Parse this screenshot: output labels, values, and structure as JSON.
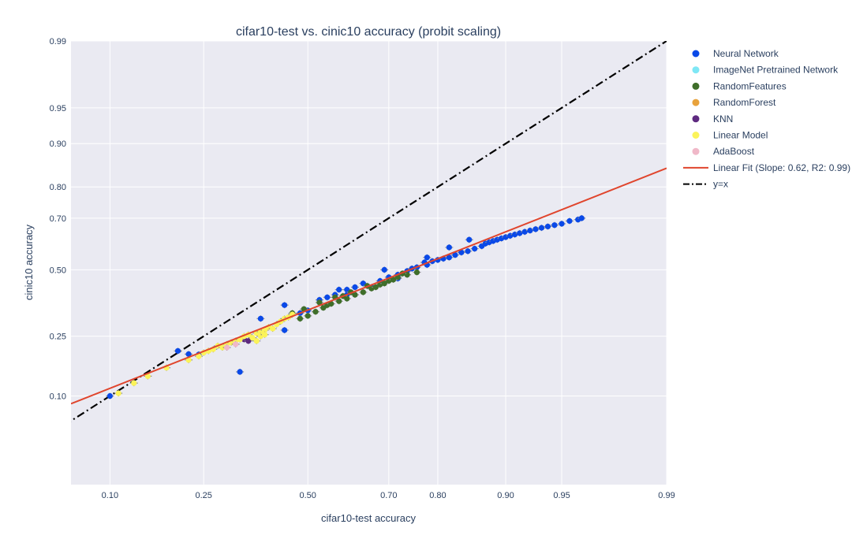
{
  "chart_data": {
    "type": "scatter",
    "title": "cifar10-test vs. cinic10 accuracy (probit scaling)",
    "xlabel": "cifar10-test accuracy",
    "ylabel": "cinic10 accuracy",
    "scale": "probit",
    "xlim": [
      0.0625,
      0.99
    ],
    "ylim": [
      0.0145,
      0.99
    ],
    "xticks": [
      0.1,
      0.25,
      0.5,
      0.7,
      0.8,
      0.9,
      0.95,
      0.99
    ],
    "xtick_labels": [
      "0.10",
      "0.25",
      "0.50",
      "0.70",
      "0.80",
      "0.90",
      "0.95",
      "0.99"
    ],
    "yticks": [
      0.1,
      0.25,
      0.5,
      0.7,
      0.8,
      0.9,
      0.95,
      0.99
    ],
    "ytick_labels": [
      "0.10",
      "0.25",
      "0.50",
      "0.70",
      "0.80",
      "0.90",
      "0.95",
      "0.99"
    ],
    "grid": true,
    "legend_position": "right",
    "error_bar_color": "#8c8c8c",
    "series": [
      {
        "name": "Neural Network",
        "color": "#0a49e8",
        "points": [
          [
            0.1,
            0.1
          ],
          [
            0.2,
            0.205
          ],
          [
            0.22,
            0.196
          ],
          [
            0.24,
            0.195
          ],
          [
            0.33,
            0.15
          ],
          [
            0.44,
            0.36
          ],
          [
            0.44,
            0.27
          ],
          [
            0.48,
            0.33
          ],
          [
            0.5,
            0.34
          ],
          [
            0.53,
            0.38
          ],
          [
            0.55,
            0.39
          ],
          [
            0.57,
            0.4
          ],
          [
            0.6,
            0.42
          ],
          [
            0.62,
            0.43
          ],
          [
            0.64,
            0.445
          ],
          [
            0.66,
            0.43
          ],
          [
            0.68,
            0.455
          ],
          [
            0.7,
            0.47
          ],
          [
            0.72,
            0.48
          ],
          [
            0.74,
            0.495
          ],
          [
            0.76,
            0.51
          ],
          [
            0.78,
            0.52
          ],
          [
            0.79,
            0.535
          ],
          [
            0.8,
            0.54
          ],
          [
            0.81,
            0.545
          ],
          [
            0.82,
            0.55
          ],
          [
            0.83,
            0.56
          ],
          [
            0.84,
            0.57
          ],
          [
            0.85,
            0.575
          ],
          [
            0.86,
            0.585
          ],
          [
            0.87,
            0.595
          ],
          [
            0.875,
            0.605
          ],
          [
            0.88,
            0.61
          ],
          [
            0.885,
            0.615
          ],
          [
            0.89,
            0.62
          ],
          [
            0.895,
            0.625
          ],
          [
            0.9,
            0.63
          ],
          [
            0.905,
            0.635
          ],
          [
            0.91,
            0.64
          ],
          [
            0.915,
            0.645
          ],
          [
            0.92,
            0.65
          ],
          [
            0.925,
            0.655
          ],
          [
            0.93,
            0.66
          ],
          [
            0.935,
            0.665
          ],
          [
            0.94,
            0.67
          ],
          [
            0.945,
            0.675
          ],
          [
            0.95,
            0.68
          ],
          [
            0.955,
            0.69
          ],
          [
            0.96,
            0.695
          ],
          [
            0.962,
            0.7
          ],
          [
            0.852,
            0.62
          ],
          [
            0.82,
            0.59
          ],
          [
            0.78,
            0.55
          ],
          [
            0.69,
            0.5
          ],
          [
            0.72,
            0.465
          ],
          [
            0.6,
            0.4
          ],
          [
            0.38,
            0.31
          ],
          [
            0.58,
            0.42
          ],
          [
            0.75,
            0.505
          ],
          [
            0.775,
            0.53
          ]
        ]
      },
      {
        "name": "ImageNet Pretrained Network",
        "color": "#7fe7f5",
        "points": []
      },
      {
        "name": "RandomFeatures",
        "color": "#3f6e2a",
        "points": [
          [
            0.46,
            0.33
          ],
          [
            0.48,
            0.31
          ],
          [
            0.5,
            0.32
          ],
          [
            0.52,
            0.335
          ],
          [
            0.54,
            0.35
          ],
          [
            0.55,
            0.36
          ],
          [
            0.56,
            0.365
          ],
          [
            0.58,
            0.375
          ],
          [
            0.6,
            0.385
          ],
          [
            0.62,
            0.4
          ],
          [
            0.64,
            0.41
          ],
          [
            0.66,
            0.425
          ],
          [
            0.68,
            0.44
          ],
          [
            0.7,
            0.455
          ],
          [
            0.72,
            0.47
          ],
          [
            0.74,
            0.48
          ],
          [
            0.76,
            0.49
          ],
          [
            0.49,
            0.345
          ],
          [
            0.53,
            0.37
          ],
          [
            0.57,
            0.39
          ],
          [
            0.61,
            0.41
          ],
          [
            0.65,
            0.435
          ],
          [
            0.69,
            0.445
          ],
          [
            0.73,
            0.485
          ],
          [
            0.59,
            0.395
          ],
          [
            0.67,
            0.43
          ],
          [
            0.71,
            0.46
          ]
        ]
      },
      {
        "name": "RandomForest",
        "color": "#e8a23c",
        "points": []
      },
      {
        "name": "KNN",
        "color": "#5e2a80",
        "points": [
          [
            0.34,
            0.24
          ],
          [
            0.35,
            0.235
          ]
        ]
      },
      {
        "name": "Linear Model",
        "color": "#fbf35a",
        "points": [
          [
            0.11,
            0.105
          ],
          [
            0.13,
            0.125
          ],
          [
            0.15,
            0.14
          ],
          [
            0.18,
            0.16
          ],
          [
            0.22,
            0.18
          ],
          [
            0.24,
            0.19
          ],
          [
            0.25,
            0.2
          ],
          [
            0.26,
            0.205
          ],
          [
            0.27,
            0.21
          ],
          [
            0.28,
            0.22
          ],
          [
            0.29,
            0.215
          ],
          [
            0.3,
            0.225
          ],
          [
            0.31,
            0.23
          ],
          [
            0.32,
            0.235
          ],
          [
            0.33,
            0.24
          ],
          [
            0.34,
            0.25
          ],
          [
            0.35,
            0.255
          ],
          [
            0.36,
            0.245
          ],
          [
            0.37,
            0.26
          ],
          [
            0.38,
            0.265
          ],
          [
            0.39,
            0.27
          ],
          [
            0.4,
            0.28
          ],
          [
            0.41,
            0.275
          ],
          [
            0.42,
            0.29
          ],
          [
            0.43,
            0.3
          ],
          [
            0.44,
            0.31
          ],
          [
            0.45,
            0.315
          ],
          [
            0.46,
            0.325
          ],
          [
            0.37,
            0.235
          ],
          [
            0.38,
            0.25
          ],
          [
            0.39,
            0.255
          ]
        ]
      },
      {
        "name": "AdaBoost",
        "color": "#f0b8c8",
        "points": [
          [
            0.3,
            0.215
          ],
          [
            0.32,
            0.225
          ]
        ]
      }
    ],
    "fit_line": {
      "name": "Linear Fit (Slope: 0.62, R2: 0.99)",
      "color": "#e0452d",
      "slope": 0.62,
      "intercept": -0.4092
    },
    "reference_line": {
      "name": "y=x",
      "color": "#000000"
    }
  }
}
